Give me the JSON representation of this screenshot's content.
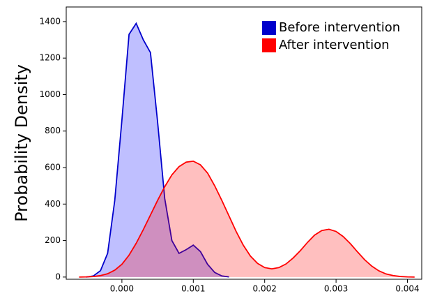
{
  "chart_data": {
    "type": "area",
    "y_label": "Probability Density",
    "x": [
      -0.0006,
      -0.0005,
      -0.0004,
      -0.0003,
      -0.0002,
      -0.0001,
      0,
      0.0001,
      0.0002,
      0.0003,
      0.0004,
      0.0005,
      0.0006,
      0.0007,
      0.0008,
      0.0009,
      0.001,
      0.0011,
      0.0012,
      0.0013,
      0.0014,
      0.0015,
      0.0016,
      0.0017,
      0.0018,
      0.0019,
      0.002,
      0.0021,
      0.0022,
      0.0023,
      0.0024,
      0.0025,
      0.0026,
      0.0027,
      0.0028,
      0.0029,
      0.003,
      0.0031,
      0.0032,
      0.0033,
      0.0034,
      0.0035,
      0.0036,
      0.0037,
      0.0038,
      0.0039,
      0.004,
      0.0041
    ],
    "series": [
      {
        "name": "Before intervention",
        "color": "#0000cc",
        "fill": "#0000ff",
        "values": [
          null,
          0,
          6,
          35,
          130,
          420,
          860,
          1330,
          1390,
          1300,
          1230,
          850,
          430,
          200,
          130,
          150,
          175,
          140,
          70,
          25,
          6,
          1,
          null,
          null,
          null,
          null,
          null,
          null,
          null,
          null,
          null,
          null,
          null,
          null,
          null,
          null,
          null,
          null,
          null,
          null,
          null,
          null,
          null,
          null,
          null,
          null,
          null,
          null
        ]
      },
      {
        "name": "After intervention",
        "color": "#ff0000",
        "fill": "#ff0000",
        "values": [
          0,
          1,
          3,
          8,
          18,
          38,
          70,
          120,
          185,
          260,
          340,
          420,
          495,
          560,
          605,
          630,
          635,
          615,
          570,
          500,
          420,
          335,
          250,
          175,
          115,
          75,
          52,
          45,
          52,
          72,
          105,
          145,
          190,
          230,
          255,
          262,
          250,
          222,
          183,
          138,
          95,
          60,
          34,
          17,
          8,
          3,
          1,
          0
        ]
      }
    ],
    "xlim": [
      -0.00078,
      0.0042
    ],
    "xticks": [
      {
        "value": 0,
        "label": "0.000"
      },
      {
        "value": 0.001,
        "label": "0.001"
      },
      {
        "value": 0.002,
        "label": "0.002"
      },
      {
        "value": 0.003,
        "label": "0.003"
      },
      {
        "value": 0.004,
        "label": "0.004"
      }
    ],
    "ylim": [
      -12,
      1480
    ],
    "yticks": [
      0,
      200,
      400,
      600,
      800,
      1000,
      1200,
      1400
    ],
    "legend": "upper right"
  }
}
